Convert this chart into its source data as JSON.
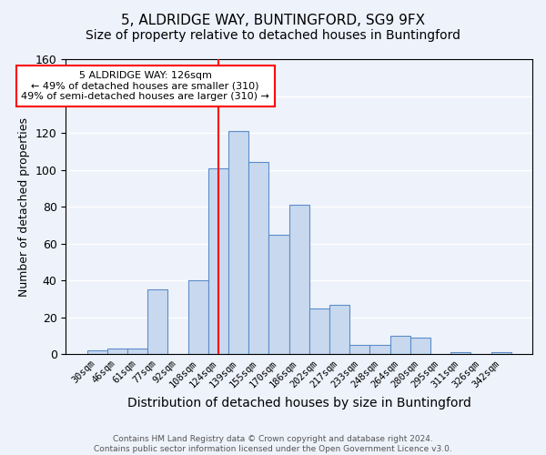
{
  "title1": "5, ALDRIDGE WAY, BUNTINGFORD, SG9 9FX",
  "title2": "Size of property relative to detached houses in Buntingford",
  "xlabel": "Distribution of detached houses by size in Buntingford",
  "ylabel": "Number of detached properties",
  "categories": [
    "30sqm",
    "46sqm",
    "61sqm",
    "77sqm",
    "92sqm",
    "108sqm",
    "124sqm",
    "139sqm",
    "155sqm",
    "170sqm",
    "186sqm",
    "202sqm",
    "217sqm",
    "233sqm",
    "248sqm",
    "264sqm",
    "280sqm",
    "295sqm",
    "311sqm",
    "326sqm",
    "342sqm"
  ],
  "values": [
    2,
    3,
    3,
    35,
    0,
    40,
    101,
    121,
    104,
    65,
    81,
    25,
    27,
    5,
    5,
    10,
    9,
    0,
    1,
    0,
    1
  ],
  "bar_color": "#c8d9ef",
  "bar_edge_color": "#5b8dc8",
  "vline_x_index": 6,
  "vline_color": "red",
  "annotation_text": "5 ALDRIDGE WAY: 126sqm\n← 49% of detached houses are smaller (310)\n49% of semi-detached houses are larger (310) →",
  "annotation_box_color": "white",
  "annotation_box_edge": "red",
  "ylim": [
    0,
    160
  ],
  "yticks": [
    0,
    20,
    40,
    60,
    80,
    100,
    120,
    140,
    160
  ],
  "footer": "Contains HM Land Registry data © Crown copyright and database right 2024.\nContains public sector information licensed under the Open Government Licence v3.0.",
  "bg_color": "#eef2fb",
  "plot_bg_color": "#eef2fb",
  "title1_fontsize": 11,
  "title2_fontsize": 10,
  "xlabel_fontsize": 10,
  "ylabel_fontsize": 9
}
